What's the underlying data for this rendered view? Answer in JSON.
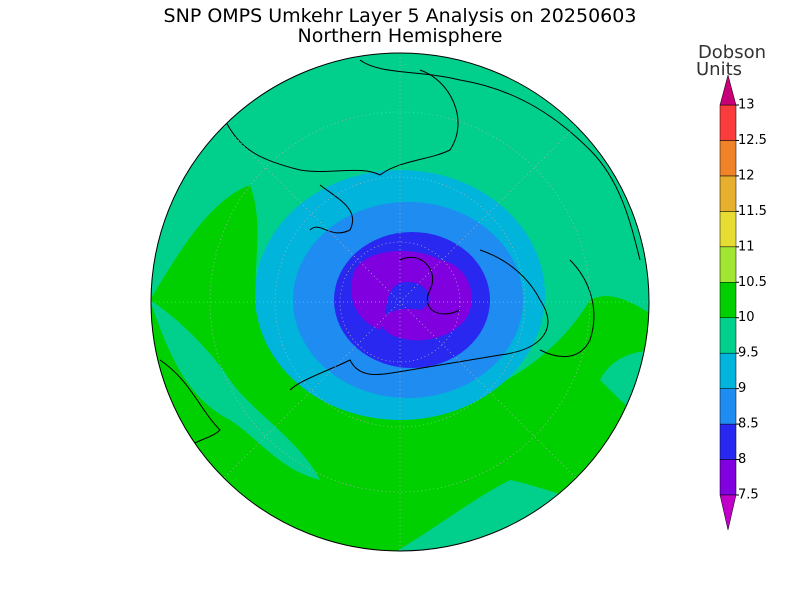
{
  "title": "SNP OMPS Umkehr Layer 5 Analysis on 20250603",
  "subtitle": "Northern Hemisphere",
  "colorbar": {
    "units": [
      "Dobson",
      "Units"
    ],
    "ticks": [
      7.5,
      8,
      8.5,
      9,
      9.5,
      10,
      10.5,
      11,
      11.5,
      12,
      12.5,
      13
    ],
    "colors": [
      "#8000e0",
      "#2828f0",
      "#1e8cf0",
      "#00b4dc",
      "#00d08c",
      "#00d000",
      "#a0e632",
      "#e6dc32",
      "#e6af2d",
      "#f08228",
      "#fa3c3c"
    ],
    "under_color": "#c000c8",
    "over_color": "#c80078"
  }
}
